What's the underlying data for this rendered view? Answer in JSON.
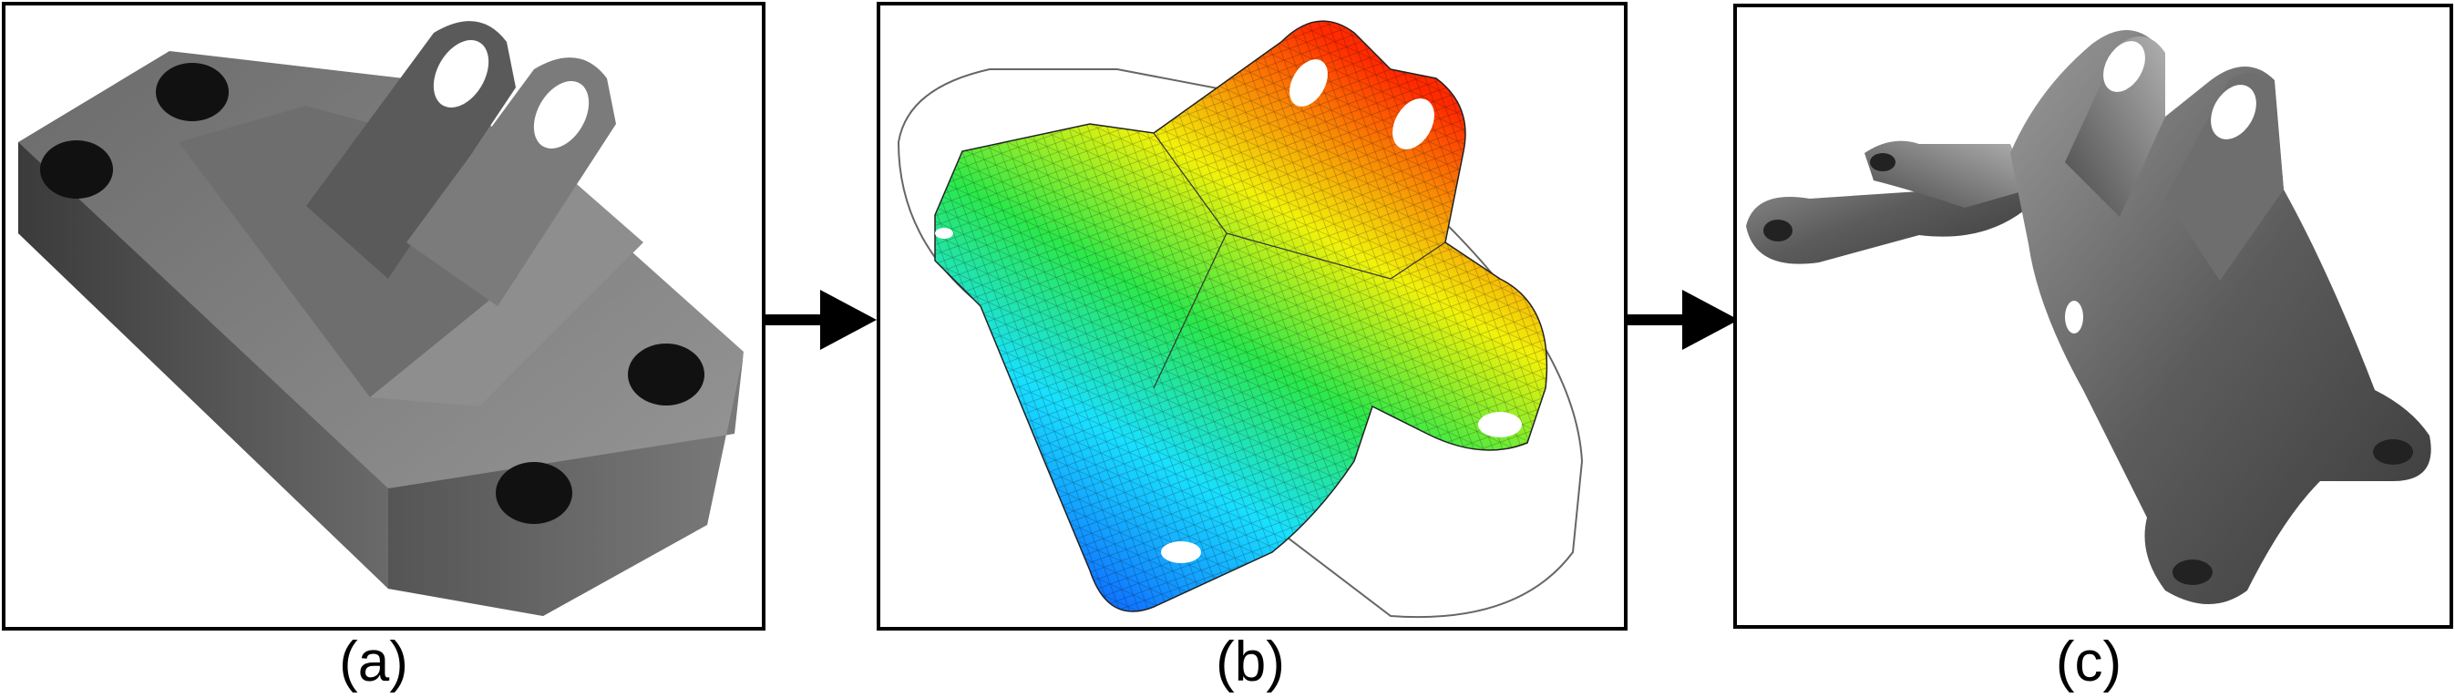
{
  "panels": [
    {
      "id": "a",
      "label": "(a)",
      "content": "solid-bracket-render"
    },
    {
      "id": "b",
      "label": "(b)",
      "content": "topology-optimization-mesh"
    },
    {
      "id": "c",
      "label": "(c)",
      "content": "optimized-bracket-render"
    }
  ],
  "arrows": [
    "arrow-right-icon",
    "arrow-right-icon"
  ],
  "colors": {
    "metal_dark": "#3a3a3a",
    "metal_light": "#8a8a8a",
    "outline": "#000000",
    "heat_low": "#0a2cff",
    "heat_mid": "#19e0ff",
    "heat_high": "#ff2a00"
  }
}
